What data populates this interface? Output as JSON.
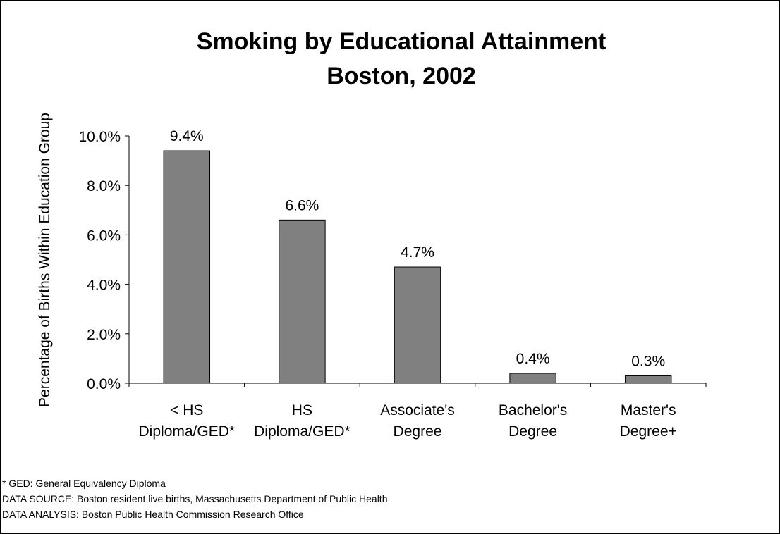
{
  "chart_data": {
    "type": "bar",
    "title": [
      "Smoking by Educational Attainment",
      "Boston, 2002"
    ],
    "ylabel": "Percentage of Births Within Education Group",
    "xlabel": "",
    "ylim": [
      0,
      10
    ],
    "yticks": [
      0,
      2,
      4,
      6,
      8,
      10
    ],
    "ytick_labels": [
      "0.0%",
      "2.0%",
      "4.0%",
      "6.0%",
      "8.0%",
      "10.0%"
    ],
    "categories": [
      [
        "< HS",
        "Diploma/GED*"
      ],
      [
        "HS",
        "Diploma/GED*"
      ],
      [
        "Associate's",
        "Degree"
      ],
      [
        "Bachelor's",
        "Degree"
      ],
      [
        "Master's",
        "Degree+"
      ]
    ],
    "values": [
      9.4,
      6.6,
      4.7,
      0.4,
      0.3
    ],
    "data_labels": [
      "9.4%",
      "6.6%",
      "4.7%",
      "0.4%",
      "0.3%"
    ],
    "bar_color": "#808080",
    "grid": false,
    "legend": "none"
  },
  "footnotes": [
    "* GED:  General Equivalency Diploma",
    "DATA SOURCE:  Boston resident live births, Massachusetts Department of Public Health",
    "DATA ANALYSIS:  Boston Public Health Commission Research Office"
  ]
}
